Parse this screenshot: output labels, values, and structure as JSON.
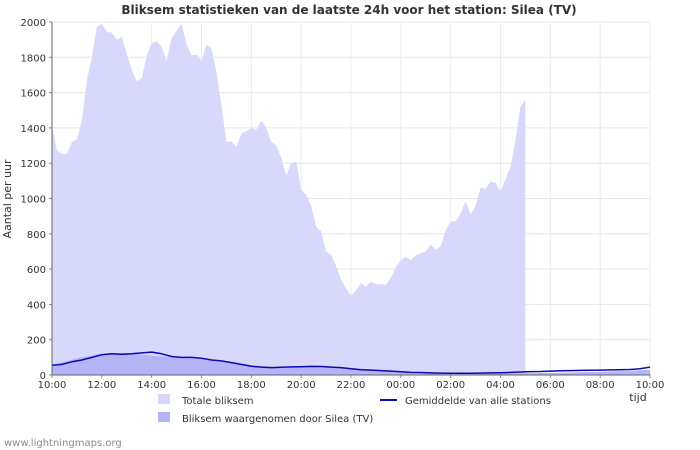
{
  "chart_data": {
    "type": "area",
    "title": "Bliksem statistieken van de laatste 24h voor het station: Silea (TV)",
    "ylabel": "Aantal per uur",
    "xlabel": "tijd",
    "ylim": [
      0,
      2000
    ],
    "xlim": [
      0,
      24
    ],
    "y_ticks": [
      0,
      200,
      400,
      600,
      800,
      1000,
      1200,
      1400,
      1600,
      1800,
      2000
    ],
    "x_ticks": [
      {
        "h": 0,
        "label": "10:00"
      },
      {
        "h": 2,
        "label": "12:00"
      },
      {
        "h": 4,
        "label": "14:00"
      },
      {
        "h": 6,
        "label": "16:00"
      },
      {
        "h": 8,
        "label": "18:00"
      },
      {
        "h": 10,
        "label": "20:00"
      },
      {
        "h": 12,
        "label": "22:00"
      },
      {
        "h": 14,
        "label": "00:00"
      },
      {
        "h": 16,
        "label": "02:00"
      },
      {
        "h": 18,
        "label": "04:00"
      },
      {
        "h": 20,
        "label": "06:00"
      },
      {
        "h": 22,
        "label": "08:00"
      },
      {
        "h": 24,
        "label": "10:00"
      }
    ],
    "grid": true,
    "series": [
      {
        "name": "Totale bliksem",
        "style": "area",
        "color": "#d8d8fc",
        "points": [
          [
            0,
            1410
          ],
          [
            0.2,
            1270
          ],
          [
            0.4,
            1255
          ],
          [
            0.6,
            1255
          ],
          [
            0.8,
            1320
          ],
          [
            1.0,
            1335
          ],
          [
            1.2,
            1440
          ],
          [
            1.4,
            1670
          ],
          [
            1.6,
            1800
          ],
          [
            1.8,
            1970
          ],
          [
            2.0,
            1990
          ],
          [
            2.2,
            1945
          ],
          [
            2.4,
            1940
          ],
          [
            2.6,
            1900
          ],
          [
            2.8,
            1915
          ],
          [
            3.0,
            1820
          ],
          [
            3.2,
            1730
          ],
          [
            3.4,
            1665
          ],
          [
            3.6,
            1680
          ],
          [
            3.8,
            1810
          ],
          [
            4.0,
            1880
          ],
          [
            4.2,
            1890
          ],
          [
            4.4,
            1860
          ],
          [
            4.6,
            1780
          ],
          [
            4.8,
            1910
          ],
          [
            5.0,
            1950
          ],
          [
            5.2,
            1990
          ],
          [
            5.4,
            1870
          ],
          [
            5.6,
            1810
          ],
          [
            5.8,
            1815
          ],
          [
            6.0,
            1780
          ],
          [
            6.2,
            1870
          ],
          [
            6.4,
            1850
          ],
          [
            6.6,
            1720
          ],
          [
            6.8,
            1530
          ],
          [
            7.0,
            1320
          ],
          [
            7.2,
            1325
          ],
          [
            7.4,
            1290
          ],
          [
            7.6,
            1370
          ],
          [
            7.8,
            1380
          ],
          [
            8.0,
            1400
          ],
          [
            8.2,
            1390
          ],
          [
            8.4,
            1440
          ],
          [
            8.6,
            1400
          ],
          [
            8.8,
            1320
          ],
          [
            9.0,
            1300
          ],
          [
            9.2,
            1230
          ],
          [
            9.4,
            1130
          ],
          [
            9.6,
            1200
          ],
          [
            9.8,
            1210
          ],
          [
            10.0,
            1050
          ],
          [
            10.2,
            1020
          ],
          [
            10.4,
            960
          ],
          [
            10.6,
            840
          ],
          [
            10.8,
            815
          ],
          [
            11.0,
            700
          ],
          [
            11.2,
            680
          ],
          [
            11.4,
            620
          ],
          [
            11.6,
            540
          ],
          [
            11.8,
            490
          ],
          [
            12.0,
            450
          ],
          [
            12.2,
            480
          ],
          [
            12.4,
            520
          ],
          [
            12.6,
            500
          ],
          [
            12.8,
            530
          ],
          [
            13.0,
            515
          ],
          [
            13.2,
            515
          ],
          [
            13.4,
            510
          ],
          [
            13.6,
            550
          ],
          [
            13.8,
            610
          ],
          [
            14.0,
            650
          ],
          [
            14.2,
            670
          ],
          [
            14.4,
            650
          ],
          [
            14.6,
            680
          ],
          [
            14.8,
            690
          ],
          [
            15.0,
            700
          ],
          [
            15.2,
            740
          ],
          [
            15.4,
            710
          ],
          [
            15.6,
            730
          ],
          [
            15.8,
            820
          ],
          [
            16.0,
            870
          ],
          [
            16.2,
            870
          ],
          [
            16.4,
            915
          ],
          [
            16.6,
            985
          ],
          [
            16.8,
            910
          ],
          [
            17.0,
            960
          ],
          [
            17.2,
            1060
          ],
          [
            17.4,
            1055
          ],
          [
            17.6,
            1095
          ],
          [
            17.8,
            1090
          ],
          [
            18.0,
            1040
          ],
          [
            18.2,
            1110
          ],
          [
            18.4,
            1180
          ],
          [
            18.6,
            1330
          ],
          [
            18.8,
            1520
          ],
          [
            19.0,
            1560
          ]
        ]
      },
      {
        "name": "Bliksem waargenomen door Silea (TV)",
        "style": "area",
        "color": "#b4b4f6",
        "points": [
          [
            0,
            55
          ],
          [
            1,
            95
          ],
          [
            2,
            120
          ],
          [
            3,
            125
          ],
          [
            4,
            110
          ],
          [
            5,
            100
          ],
          [
            6,
            90
          ],
          [
            7,
            75
          ],
          [
            8,
            55
          ],
          [
            9,
            45
          ],
          [
            10,
            45
          ],
          [
            11,
            50
          ],
          [
            12,
            40
          ],
          [
            13,
            30
          ],
          [
            14,
            22
          ],
          [
            15,
            15
          ],
          [
            16,
            12
          ],
          [
            17,
            10
          ],
          [
            18,
            10
          ],
          [
            19,
            10
          ],
          [
            20,
            12
          ],
          [
            21,
            15
          ],
          [
            22,
            18
          ],
          [
            23,
            22
          ],
          [
            24,
            30
          ]
        ]
      },
      {
        "name": "Gemiddelde van alle stations",
        "style": "line",
        "color": "#0b0bb0",
        "points": [
          [
            0,
            55
          ],
          [
            0.4,
            60
          ],
          [
            0.8,
            75
          ],
          [
            1.2,
            85
          ],
          [
            1.6,
            100
          ],
          [
            2.0,
            115
          ],
          [
            2.4,
            120
          ],
          [
            2.8,
            118
          ],
          [
            3.2,
            120
          ],
          [
            3.6,
            125
          ],
          [
            4.0,
            130
          ],
          [
            4.4,
            120
          ],
          [
            4.8,
            105
          ],
          [
            5.2,
            100
          ],
          [
            5.6,
            100
          ],
          [
            6.0,
            95
          ],
          [
            6.4,
            85
          ],
          [
            6.8,
            80
          ],
          [
            7.2,
            70
          ],
          [
            7.6,
            60
          ],
          [
            8.0,
            50
          ],
          [
            8.4,
            45
          ],
          [
            8.8,
            42
          ],
          [
            9.2,
            44
          ],
          [
            9.6,
            46
          ],
          [
            10.0,
            47
          ],
          [
            10.4,
            49
          ],
          [
            10.8,
            48
          ],
          [
            11.2,
            45
          ],
          [
            11.6,
            42
          ],
          [
            12.0,
            35
          ],
          [
            12.4,
            30
          ],
          [
            12.8,
            28
          ],
          [
            13.2,
            25
          ],
          [
            13.6,
            22
          ],
          [
            14.0,
            18
          ],
          [
            14.4,
            15
          ],
          [
            14.8,
            14
          ],
          [
            15.2,
            12
          ],
          [
            15.6,
            11
          ],
          [
            16.0,
            10
          ],
          [
            16.4,
            10
          ],
          [
            16.8,
            10
          ],
          [
            17.2,
            11
          ],
          [
            17.6,
            12
          ],
          [
            18.0,
            13
          ],
          [
            18.4,
            15
          ],
          [
            18.8,
            17
          ],
          [
            19.2,
            19
          ],
          [
            19.6,
            20
          ],
          [
            20.0,
            22
          ],
          [
            20.4,
            24
          ],
          [
            20.8,
            25
          ],
          [
            21.2,
            26
          ],
          [
            21.6,
            27
          ],
          [
            22.0,
            28
          ],
          [
            22.4,
            29
          ],
          [
            22.8,
            30
          ],
          [
            23.2,
            31
          ],
          [
            23.6,
            35
          ],
          [
            24.0,
            45
          ]
        ]
      }
    ],
    "legend": {
      "placement": "bottom",
      "items": [
        {
          "label": "Totale bliksem",
          "color": "#d8d8fc",
          "kind": "box"
        },
        {
          "label": "Bliksem waargenomen door Silea (TV)",
          "color": "#b4b4f6",
          "kind": "box"
        },
        {
          "label": "Gemiddelde van alle stations",
          "color": "#0b0bb0",
          "kind": "line"
        }
      ]
    }
  },
  "footer": {
    "credit": "www.lightningmaps.org"
  }
}
